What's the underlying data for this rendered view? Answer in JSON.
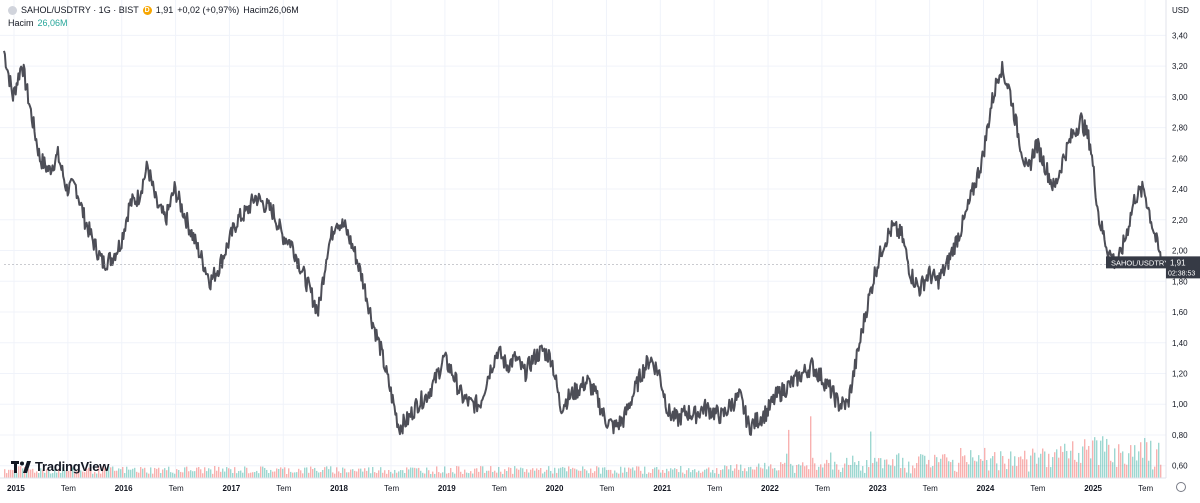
{
  "header": {
    "symbol": "SAHOL/USDTRY",
    "interval": "1G",
    "exchange": "BIST",
    "title": "SAHOL/USDTRY · 1G · BIST",
    "badge": "D",
    "last_price": "1,91",
    "change": "+0,02 (+0,97%)",
    "volume_inline": "Hacim26,06M"
  },
  "volume_legend": {
    "label": "Hacim",
    "value": "26,06M"
  },
  "brand": {
    "name": "TradingView"
  },
  "price_scale": {
    "currency": "USD",
    "ticks": [
      "3,40",
      "3,20",
      "3,00",
      "2,80",
      "2,60",
      "2,40",
      "2,20",
      "2,00",
      "1,80",
      "1,60",
      "1,40",
      "1,20",
      "1,00",
      "0,80",
      "0,60"
    ]
  },
  "price_tag": {
    "label": "SAHOL/USDTRY",
    "price": "1,91",
    "countdown": "02:38:53"
  },
  "time_axis": [
    "2015",
    "Tem",
    "2016",
    "Tem",
    "2017",
    "Tem",
    "2018",
    "Tem",
    "2019",
    "Tem",
    "2020",
    "Tem",
    "2021",
    "Tem",
    "2022",
    "Tem",
    "2023",
    "Tem",
    "2024",
    "Tem",
    "2025",
    "Tem"
  ],
  "colors": {
    "line": "#4d4e57",
    "vol_up": "#26a69a",
    "vol_down": "#ef5350",
    "grid": "#f0f3fa",
    "tag": "#363a45"
  },
  "chart_data": {
    "type": "line",
    "title": "SAHOL/USDTRY · 1G · BIST",
    "ylabel": "USD",
    "ylim": [
      0.52,
      3.5
    ],
    "grid": true,
    "legend": "top-left",
    "x": [
      "2015-01",
      "2015-02",
      "2015-03",
      "2015-04",
      "2015-05",
      "2015-06",
      "2015-07",
      "2015-08",
      "2015-09",
      "2015-10",
      "2015-11",
      "2015-12",
      "2016-01",
      "2016-02",
      "2016-03",
      "2016-04",
      "2016-05",
      "2016-06",
      "2016-07",
      "2016-08",
      "2016-09",
      "2016-10",
      "2016-11",
      "2016-12",
      "2017-01",
      "2017-02",
      "2017-03",
      "2017-04",
      "2017-05",
      "2017-06",
      "2017-07",
      "2017-08",
      "2017-09",
      "2017-10",
      "2017-11",
      "2017-12",
      "2018-01",
      "2018-02",
      "2018-03",
      "2018-04",
      "2018-05",
      "2018-06",
      "2018-07",
      "2018-08",
      "2018-09",
      "2018-10",
      "2018-11",
      "2018-12",
      "2019-01",
      "2019-02",
      "2019-03",
      "2019-04",
      "2019-05",
      "2019-06",
      "2019-07",
      "2019-08",
      "2019-09",
      "2019-10",
      "2019-11",
      "2019-12",
      "2020-01",
      "2020-02",
      "2020-03",
      "2020-04",
      "2020-05",
      "2020-06",
      "2020-07",
      "2020-08",
      "2020-09",
      "2020-10",
      "2020-11",
      "2020-12",
      "2021-01",
      "2021-02",
      "2021-03",
      "2021-04",
      "2021-05",
      "2021-06",
      "2021-07",
      "2021-08",
      "2021-09",
      "2021-10",
      "2021-11",
      "2021-12",
      "2022-01",
      "2022-02",
      "2022-03",
      "2022-04",
      "2022-05",
      "2022-06",
      "2022-07",
      "2022-08",
      "2022-09",
      "2022-10",
      "2022-11",
      "2022-12",
      "2023-01",
      "2023-02",
      "2023-03",
      "2023-04",
      "2023-05",
      "2023-06",
      "2023-07",
      "2023-08",
      "2023-09",
      "2023-10",
      "2023-11",
      "2023-12",
      "2024-01",
      "2024-02",
      "2024-03",
      "2024-04",
      "2024-05",
      "2024-06",
      "2024-07",
      "2024-08",
      "2024-09",
      "2024-10",
      "2024-11",
      "2024-12",
      "2025-01",
      "2025-02",
      "2025-03",
      "2025-04",
      "2025-05",
      "2025-06",
      "2025-07",
      "2025-08",
      "2025-09",
      "2025-10"
    ],
    "series": [
      {
        "values": [
          3.3,
          3.0,
          3.22,
          2.9,
          2.6,
          2.52,
          2.62,
          2.4,
          2.42,
          2.2,
          2.05,
          1.92,
          1.95,
          2.05,
          2.3,
          2.35,
          2.55,
          2.3,
          2.2,
          2.4,
          2.25,
          2.1,
          1.95,
          1.8,
          1.9,
          2.05,
          2.2,
          2.25,
          2.35,
          2.3,
          2.25,
          2.1,
          2.05,
          1.9,
          1.75,
          1.6,
          2.0,
          2.2,
          2.15,
          2.0,
          1.8,
          1.55,
          1.35,
          1.1,
          0.85,
          0.9,
          1.0,
          1.05,
          1.15,
          1.3,
          1.2,
          1.05,
          1.0,
          1.0,
          1.2,
          1.35,
          1.25,
          1.3,
          1.2,
          1.3,
          1.35,
          1.3,
          0.98,
          1.05,
          1.1,
          1.15,
          1.05,
          0.9,
          0.85,
          0.9,
          1.05,
          1.2,
          1.3,
          1.2,
          0.95,
          0.9,
          0.95,
          0.93,
          0.98,
          0.95,
          0.92,
          1.0,
          1.05,
          0.85,
          0.9,
          0.95,
          1.05,
          1.1,
          1.15,
          1.2,
          1.25,
          1.18,
          1.1,
          1.0,
          1.0,
          1.3,
          1.6,
          1.85,
          2.05,
          2.15,
          2.1,
          1.85,
          1.75,
          1.85,
          1.8,
          1.9,
          2.05,
          2.2,
          2.4,
          2.6,
          2.95,
          3.2,
          3.05,
          2.75,
          2.5,
          2.7,
          2.55,
          2.4,
          2.6,
          2.75,
          2.85,
          2.7,
          2.2,
          2.0,
          1.9,
          2.1,
          2.35,
          2.4,
          2.15,
          1.91
        ]
      }
    ]
  }
}
